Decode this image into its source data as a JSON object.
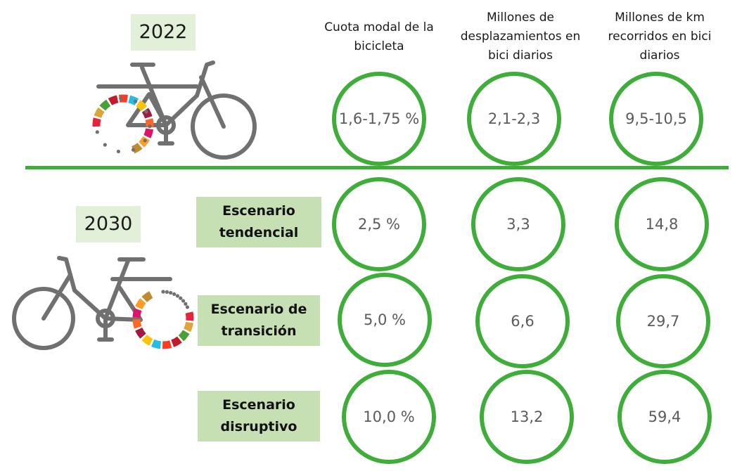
{
  "header": {
    "year_current": "2022",
    "year_future": "2030",
    "columns": [
      "Cuota modal de la bicicleta",
      "Millones de desplazamientos en bici diarios",
      "Millones de km recorridos en bici diarios"
    ]
  },
  "current": {
    "values": [
      "1,6-1,75 %",
      "2,1-2,3",
      "9,5-10,5"
    ]
  },
  "scenarios": [
    {
      "label": "Escenario tendencial",
      "values": [
        "2,5 %",
        "3,3",
        "14,8"
      ]
    },
    {
      "label": "Escenario de transición",
      "values": [
        "5,0 %",
        "6,6",
        "29,7"
      ]
    },
    {
      "label": "Escenario disruptivo",
      "values": [
        "10,0 %",
        "13,2",
        "59,4"
      ]
    }
  ],
  "colors": {
    "accent_green": "#3fad3a",
    "year_bg": "#e2efd9",
    "scenario_bg": "#c6e0b4",
    "bike_gray": "#707070",
    "value_text": "#5b5b5b",
    "sdg_wheel": [
      "#e5243b",
      "#dda63a",
      "#4c9f38",
      "#c5192d",
      "#ff3a21",
      "#26bde2",
      "#fcc30b",
      "#a21942",
      "#fd6925",
      "#dd1367",
      "#fd9d24",
      "#bf8b2e",
      "#3f7e44",
      "#0a97d9",
      "#56c02b",
      "#00689d",
      "#19486a"
    ]
  },
  "icons": {
    "bike_2022": "bicycle-sdg-icon",
    "bike_2030": "bicycle-sdg-icon"
  }
}
